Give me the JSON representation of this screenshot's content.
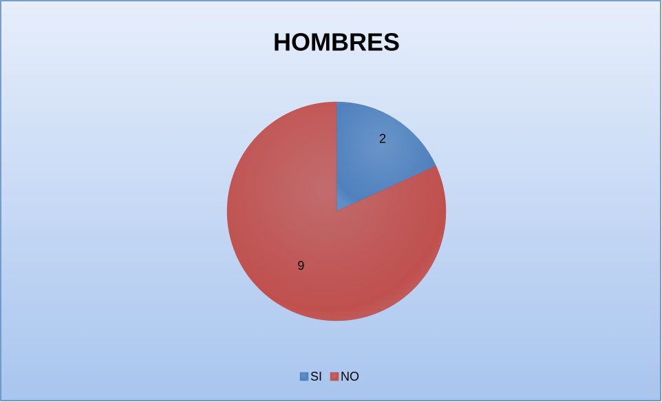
{
  "chart_data": {
    "type": "pie",
    "title": "HOMBRES",
    "categories": [
      "SI",
      "NO"
    ],
    "values": [
      2,
      9
    ],
    "colors": [
      "#4f81bd",
      "#c0504d"
    ],
    "legend": "bottom"
  }
}
